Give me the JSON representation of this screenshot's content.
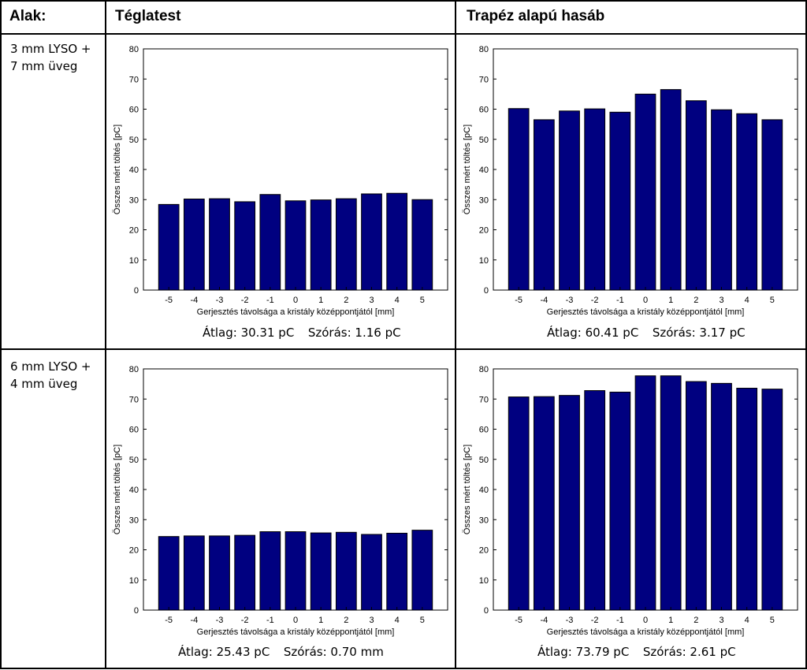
{
  "header": {
    "shape_label": "Alak:",
    "col1_title": "Téglatest",
    "col2_title": "Trapéz alapú hasáb"
  },
  "rows": [
    {
      "label_line1": "3 mm LYSO +",
      "label_line2": "7 mm üveg",
      "stats": [
        {
          "mean": "Átlag: 30.31 pC",
          "std": "Szórás: 1.16 pC"
        },
        {
          "mean": "Átlag: 60.41 pC",
          "std": "Szórás: 3.17 pC"
        }
      ]
    },
    {
      "label_line1": "6 mm LYSO +",
      "label_line2": "4 mm üveg",
      "stats": [
        {
          "mean": "Átlag: 25.43 pC",
          "std": "Szórás: 0.70 mm"
        },
        {
          "mean": "Átlag: 73.79 pC",
          "std": "Szórás: 2.61 pC"
        }
      ]
    }
  ],
  "chart_data": [
    {
      "id": "row1-teglatest",
      "type": "bar",
      "categories": [
        "-5",
        "-4",
        "-3",
        "-2",
        "-1",
        "0",
        "1",
        "2",
        "3",
        "4",
        "5"
      ],
      "values": [
        28.4,
        30.2,
        30.3,
        29.3,
        31.7,
        29.6,
        29.9,
        30.3,
        31.9,
        32.1,
        30.0
      ],
      "xlabel": "Gerjesztés távolsága a kristály középpontjától [mm]",
      "ylabel": "Összes mért töltés [pC]",
      "ylim": [
        0,
        80
      ],
      "yticks": [
        "0",
        "10",
        "20",
        "30",
        "40",
        "50",
        "60",
        "70",
        "80"
      ],
      "bar_color": "#000080"
    },
    {
      "id": "row1-trapez",
      "type": "bar",
      "categories": [
        "-5",
        "-4",
        "-3",
        "-2",
        "-1",
        "0",
        "1",
        "2",
        "3",
        "4",
        "5"
      ],
      "values": [
        60.2,
        56.5,
        59.4,
        60.1,
        59.0,
        65.0,
        66.5,
        62.8,
        59.8,
        58.5,
        56.5
      ],
      "xlabel": "Gerjesztés távolsága a kristály középpontjától [mm]",
      "ylabel": "Összes mért töltés [pC]",
      "ylim": [
        0,
        80
      ],
      "yticks": [
        "0",
        "10",
        "20",
        "30",
        "40",
        "50",
        "60",
        "70",
        "80"
      ],
      "bar_color": "#000080"
    },
    {
      "id": "row2-teglatest",
      "type": "bar",
      "categories": [
        "-5",
        "-4",
        "-3",
        "-2",
        "-1",
        "0",
        "1",
        "2",
        "3",
        "4",
        "5"
      ],
      "values": [
        24.4,
        24.6,
        24.6,
        24.8,
        26.0,
        26.0,
        25.6,
        25.8,
        25.1,
        25.5,
        26.5
      ],
      "xlabel": "Gerjesztés távolsága a kristály középpontjától [mm]",
      "ylabel": "Összes mért töltés [pC]",
      "ylim": [
        0,
        80
      ],
      "yticks": [
        "0",
        "10",
        "20",
        "30",
        "40",
        "50",
        "60",
        "70",
        "80"
      ],
      "bar_color": "#000080"
    },
    {
      "id": "row2-trapez",
      "type": "bar",
      "categories": [
        "-5",
        "-4",
        "-3",
        "-2",
        "-1",
        "0",
        "1",
        "2",
        "3",
        "4",
        "5"
      ],
      "values": [
        70.7,
        70.8,
        71.2,
        72.8,
        72.3,
        77.7,
        77.7,
        75.8,
        75.2,
        73.6,
        73.3
      ],
      "xlabel": "Gerjesztés távolsága a kristály középpontjától [mm]",
      "ylabel": "Összes mért töltés [pC]",
      "ylim": [
        0,
        80
      ],
      "yticks": [
        "0",
        "10",
        "20",
        "30",
        "40",
        "50",
        "60",
        "70",
        "80"
      ],
      "bar_color": "#000080"
    }
  ]
}
